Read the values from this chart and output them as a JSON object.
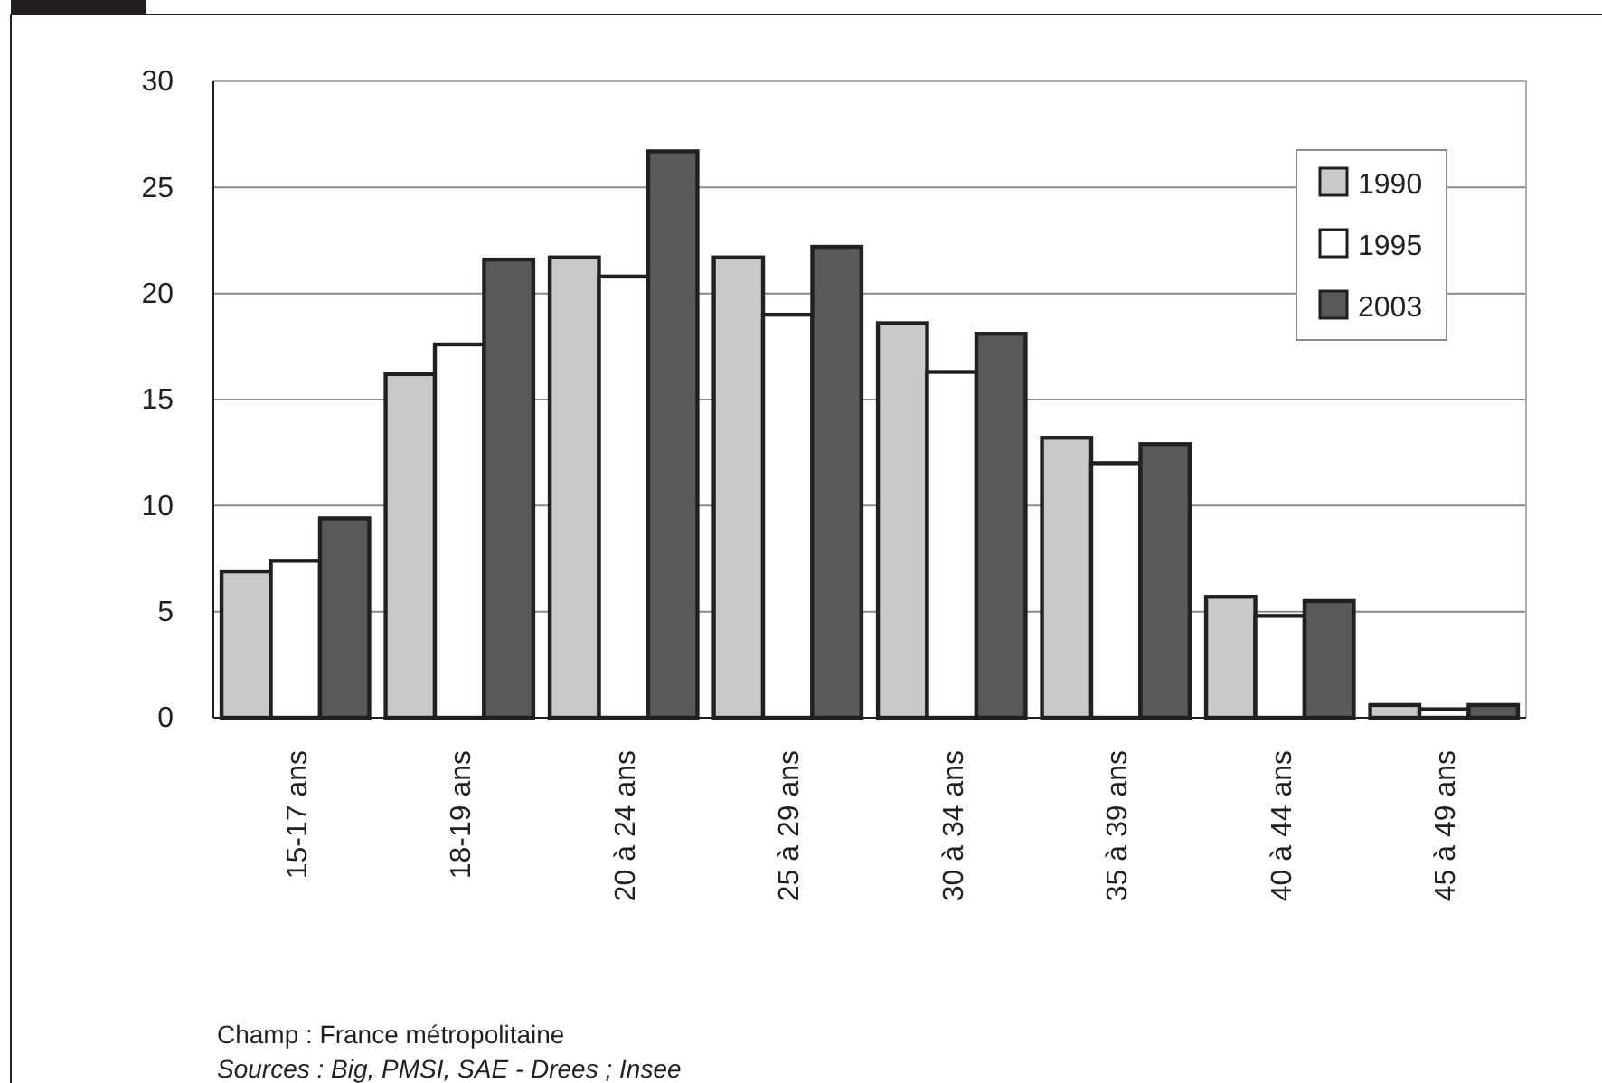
{
  "chart_data": {
    "type": "bar",
    "categories": [
      "15-17 ans",
      "18-19 ans",
      "20 à 24 ans",
      "25 à 29 ans",
      "30 à 34 ans",
      "35 à 39 ans",
      "40 à 44 ans",
      "45 à 49 ans"
    ],
    "series": [
      {
        "name": "1990",
        "color": "#c8c9cb",
        "values": [
          6.9,
          16.2,
          21.7,
          21.7,
          18.6,
          13.2,
          5.7,
          0.6
        ]
      },
      {
        "name": "1995",
        "color": "#ffffff",
        "values": [
          7.4,
          17.6,
          20.8,
          19.0,
          16.3,
          12.0,
          4.8,
          0.4
        ]
      },
      {
        "name": "2003",
        "color": "#58595b",
        "values": [
          9.4,
          21.6,
          26.7,
          22.2,
          18.1,
          12.9,
          5.5,
          0.6
        ]
      }
    ],
    "ylim": [
      0,
      30
    ],
    "yticks": [
      0,
      5,
      10,
      15,
      20,
      25,
      30
    ],
    "grid": "y",
    "legend": "top right",
    "annotations": [
      "Champ  : France métropolitaine",
      "Sources  : Big, PMSI, SAE - Drees ; Insee"
    ]
  }
}
